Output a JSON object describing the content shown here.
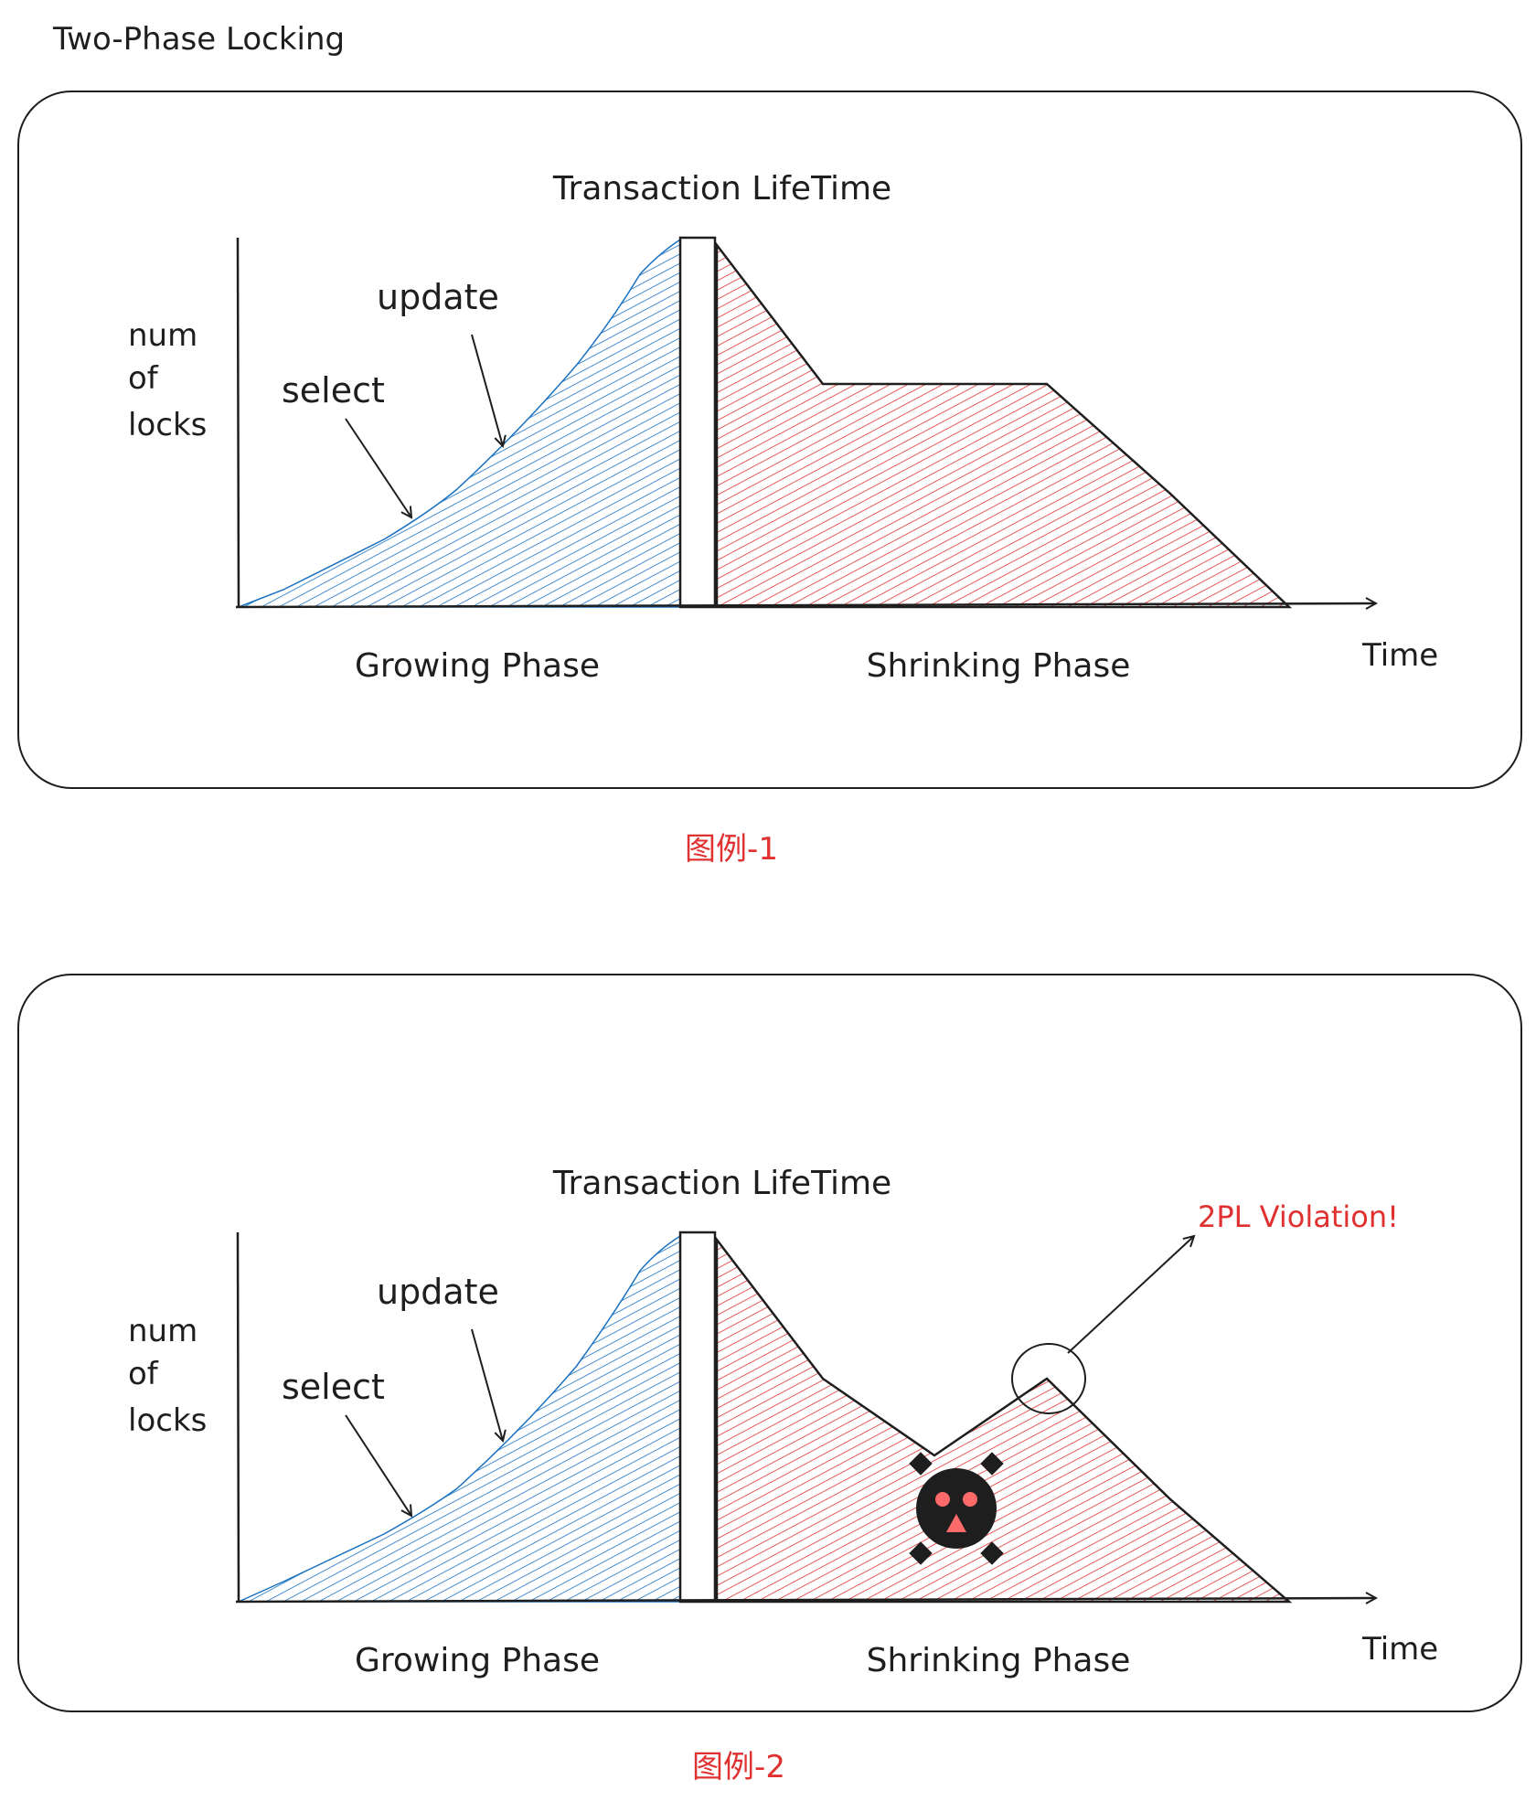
{
  "page": {
    "title": "Two-Phase Locking"
  },
  "colors": {
    "ink": "#1e1e1e",
    "growing_fill": "#1971c2",
    "shrinking_fill": "#e03131",
    "caption": "#e03131",
    "violation": "#e03131"
  },
  "figures": [
    {
      "chart_title": "Transaction LifeTime",
      "ylabel_lines": [
        "num",
        "of",
        "locks"
      ],
      "xlabel": "Time",
      "annotations": {
        "select": "select",
        "update": "update"
      },
      "phases": {
        "growing": "Growing Phase",
        "shrinking": "Shrinking Phase"
      },
      "caption": "图例-1",
      "violation": null
    },
    {
      "chart_title": "Transaction LifeTime",
      "ylabel_lines": [
        "num",
        "of",
        "locks"
      ],
      "xlabel": "Time",
      "annotations": {
        "select": "select",
        "update": "update"
      },
      "phases": {
        "growing": "Growing Phase",
        "shrinking": "Shrinking Phase"
      },
      "caption": "图例-2",
      "violation": {
        "label": "2PL Violation!",
        "icon": "skull-icon"
      }
    }
  ]
}
